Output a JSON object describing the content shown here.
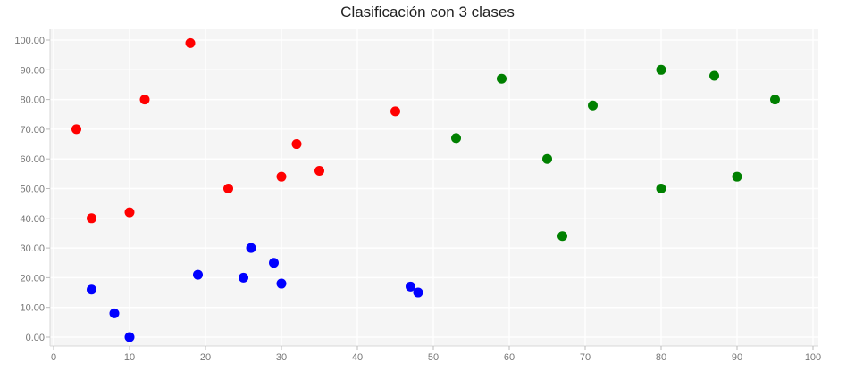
{
  "chart_data": {
    "type": "scatter",
    "title": "Clasificación con 3 clases",
    "xlabel": "",
    "ylabel": "",
    "xlim": [
      0,
      100
    ],
    "ylim": [
      0,
      100
    ],
    "x_ticks": [
      0,
      10,
      20,
      30,
      40,
      50,
      60,
      70,
      80,
      90,
      100
    ],
    "y_ticks": [
      0,
      10,
      20,
      30,
      40,
      50,
      60,
      70,
      80,
      90,
      100
    ],
    "x_tick_labels": [
      "0",
      "10",
      "20",
      "30",
      "40",
      "50",
      "60",
      "70",
      "80",
      "90",
      "100"
    ],
    "y_tick_labels": [
      "0.00",
      "10.00",
      "20.00",
      "30.00",
      "40.00",
      "50.00",
      "60.00",
      "70.00",
      "80.00",
      "90.00",
      "100.00"
    ],
    "grid": true,
    "legend": "none",
    "background_color": "#f5f5f5",
    "series": [
      {
        "color": "#ff0000",
        "points": [
          {
            "x": 3,
            "y": 70
          },
          {
            "x": 5,
            "y": 40
          },
          {
            "x": 10,
            "y": 42
          },
          {
            "x": 12,
            "y": 80
          },
          {
            "x": 18,
            "y": 99
          },
          {
            "x": 23,
            "y": 50
          },
          {
            "x": 30,
            "y": 54
          },
          {
            "x": 32,
            "y": 65
          },
          {
            "x": 35,
            "y": 56
          },
          {
            "x": 45,
            "y": 76
          }
        ]
      },
      {
        "color": "#0000ff",
        "points": [
          {
            "x": 5,
            "y": 16
          },
          {
            "x": 8,
            "y": 8
          },
          {
            "x": 10,
            "y": 0
          },
          {
            "x": 19,
            "y": 21
          },
          {
            "x": 25,
            "y": 20
          },
          {
            "x": 26,
            "y": 30
          },
          {
            "x": 29,
            "y": 25
          },
          {
            "x": 30,
            "y": 18
          },
          {
            "x": 47,
            "y": 17
          },
          {
            "x": 48,
            "y": 15
          }
        ]
      },
      {
        "color": "#008000",
        "points": [
          {
            "x": 53,
            "y": 67
          },
          {
            "x": 59,
            "y": 87
          },
          {
            "x": 65,
            "y": 60
          },
          {
            "x": 67,
            "y": 34
          },
          {
            "x": 71,
            "y": 78
          },
          {
            "x": 80,
            "y": 90
          },
          {
            "x": 80,
            "y": 50
          },
          {
            "x": 87,
            "y": 88
          },
          {
            "x": 90,
            "y": 54
          },
          {
            "x": 95,
            "y": 80
          }
        ]
      }
    ]
  }
}
